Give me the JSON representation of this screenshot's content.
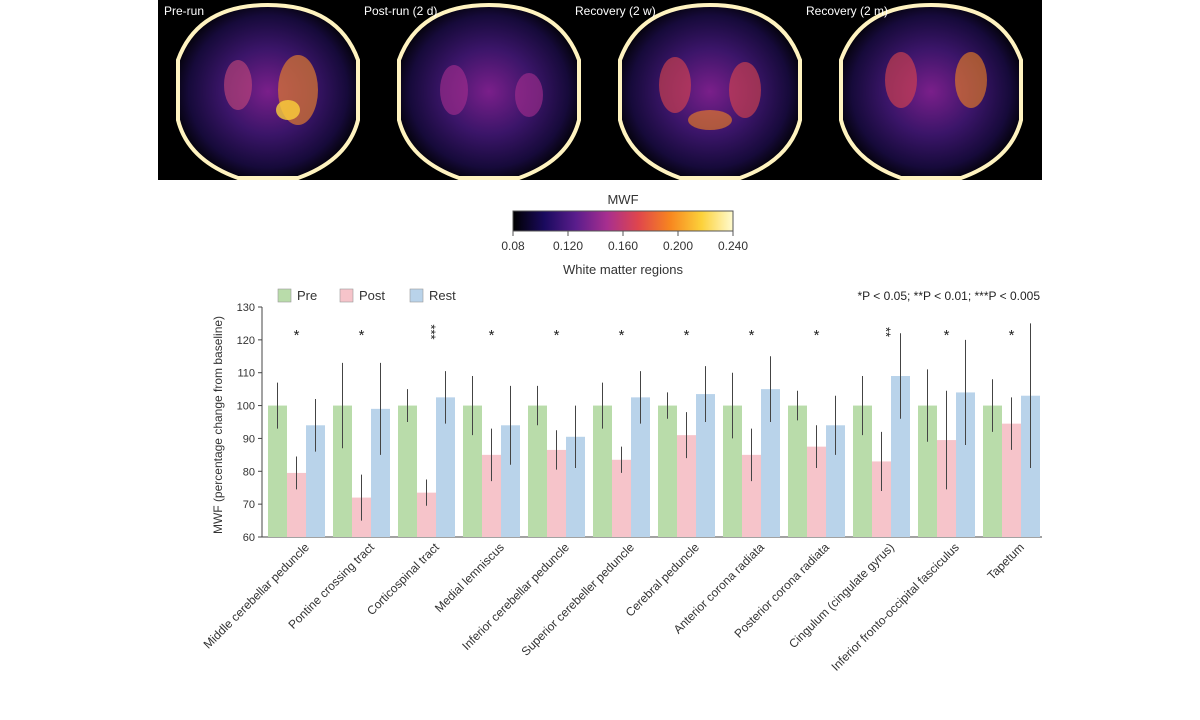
{
  "panels": [
    {
      "label": "Pre-run"
    },
    {
      "label": "Post-run (2 d)"
    },
    {
      "label": "Recovery (2 w)"
    },
    {
      "label": "Recovery (2 m)"
    }
  ],
  "colorbar": {
    "title": "MWF",
    "ticks": [
      "0.08",
      "0.120",
      "0.160",
      "0.200",
      "0.240"
    ],
    "caption": "White matter regions",
    "colors": [
      "#000000",
      "#1a0a5e",
      "#5a1d8c",
      "#a82f8f",
      "#e0464c",
      "#f7861f",
      "#fcd13a",
      "#fffbd0"
    ]
  },
  "chart_data": {
    "type": "bar",
    "ylabel": "MWF (percentage change from baseline)",
    "ylim": [
      60,
      130
    ],
    "yticks": [
      "60",
      "70",
      "80",
      "90",
      "100",
      "110",
      "120",
      "130"
    ],
    "significance_note": "*P < 0.05; **P < 0.01; ***P < 0.005",
    "colors": {
      "Pre": "#b9dcaa",
      "Post": "#f6c4ca",
      "Rest": "#b9d3ea"
    },
    "categories": [
      "Middle cerebellar peduncle",
      "Pontine crossing tract",
      "Corticospinal tract",
      "Medial lemniscus",
      "Inferior cerebellar peduncle",
      "Superior cerebeller peduncle",
      "Cerebral peduncle",
      "Anterior corona radiata",
      "Posterior corona radiata",
      "Cingulum (cingulate gyrus)",
      "Inferior fronto-occipital fasciculus",
      "Tapetum"
    ],
    "significance": [
      "*",
      "*",
      "***",
      "*",
      "*",
      "*",
      "*",
      "*",
      "*",
      "**",
      "*",
      "*"
    ],
    "series": [
      {
        "name": "Pre",
        "values": [
          100,
          100,
          100,
          100,
          100,
          100,
          100,
          100,
          100,
          100,
          100,
          100
        ],
        "errors": [
          7,
          13,
          5,
          9,
          6,
          7,
          4,
          10,
          4.5,
          9,
          11,
          8
        ]
      },
      {
        "name": "Post",
        "values": [
          79.5,
          72,
          73.5,
          85,
          86.5,
          83.5,
          91,
          85,
          87.5,
          83,
          89.5,
          94.5
        ],
        "errors": [
          5,
          7,
          4,
          8,
          6,
          4,
          7,
          8,
          6.5,
          9,
          15,
          8
        ]
      },
      {
        "name": "Rest",
        "values": [
          94,
          99,
          102.5,
          94,
          90.5,
          102.5,
          103.5,
          105,
          94,
          109,
          104,
          103
        ],
        "errors": [
          8,
          14,
          8,
          12,
          9.5,
          8,
          8.5,
          10,
          9,
          13,
          16,
          22
        ]
      }
    ]
  }
}
